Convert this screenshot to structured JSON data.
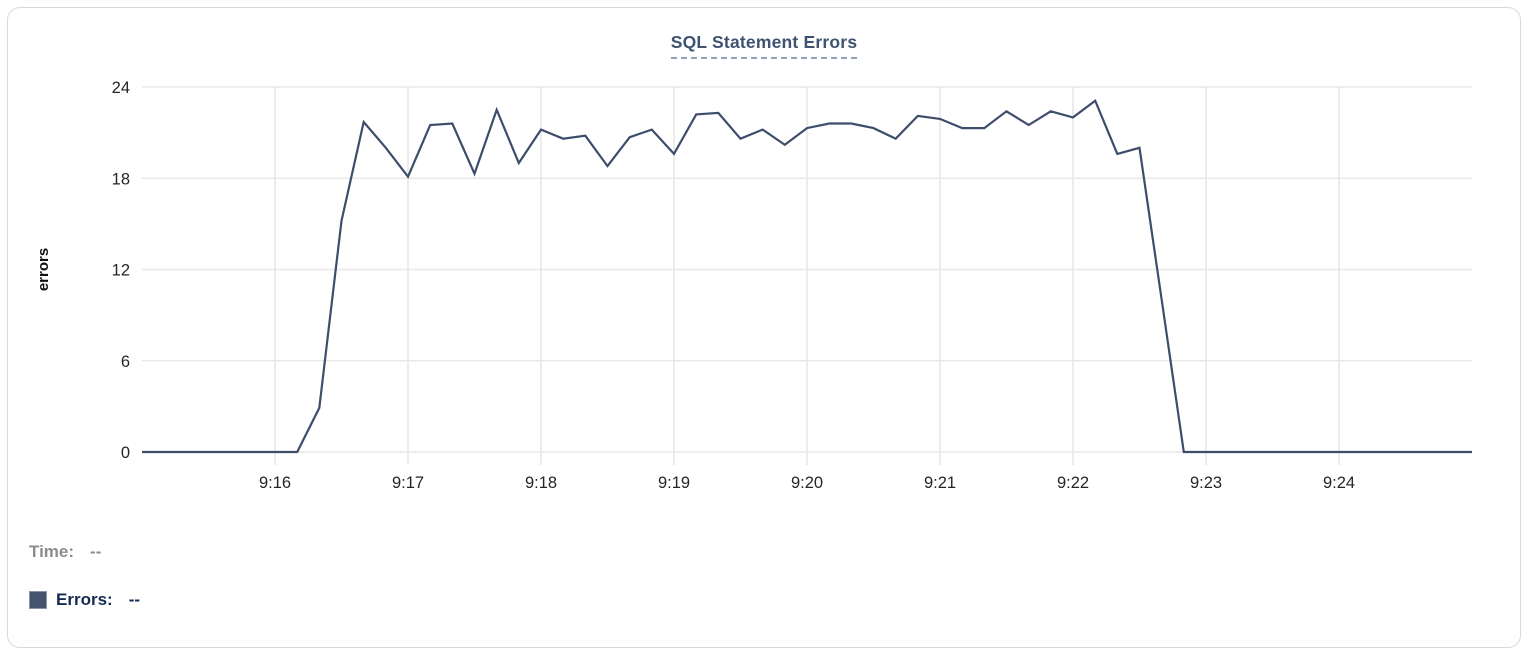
{
  "header": {
    "title": "SQL Statement Errors"
  },
  "tooltip": {
    "time_label": "Time:",
    "time_value": "--",
    "errors_label": "Errors:",
    "errors_value": "--"
  },
  "colors": {
    "line": "#3d4d6b",
    "title": "#3e5372",
    "title_underline": "#93a2bd",
    "swatch": "#44546e",
    "time_text": "#8c8c8c",
    "errors_text": "#152a52",
    "grid": "#e8e8e8",
    "tick_text": "#262626",
    "axis_label_text": "#111111",
    "card_border": "#d9d9d9"
  },
  "chart_data": {
    "type": "line",
    "title": "SQL Statement Errors",
    "xlabel": "",
    "ylabel": "errors",
    "xlim": [
      "9:15:00",
      "9:25:00"
    ],
    "ylim": [
      0,
      24
    ],
    "y_ticks": [
      0,
      6,
      12,
      18,
      24
    ],
    "x_ticks": [
      "9:16",
      "9:17",
      "9:18",
      "9:19",
      "9:20",
      "9:21",
      "9:22",
      "9:23",
      "9:24"
    ],
    "grid": true,
    "legend_position": "none",
    "series": [
      {
        "name": "Errors",
        "color": "#3d4d6b",
        "points": [
          [
            "9:15:00",
            0
          ],
          [
            "9:15:10",
            0
          ],
          [
            "9:15:20",
            0
          ],
          [
            "9:15:30",
            0
          ],
          [
            "9:15:40",
            0
          ],
          [
            "9:15:50",
            0
          ],
          [
            "9:16:00",
            0
          ],
          [
            "9:16:10",
            0
          ],
          [
            "9:16:20",
            2.9
          ],
          [
            "9:16:30",
            15.2
          ],
          [
            "9:16:40",
            21.7
          ],
          [
            "9:16:50",
            20
          ],
          [
            "9:17:00",
            18.1
          ],
          [
            "9:17:10",
            21.5
          ],
          [
            "9:17:20",
            21.6
          ],
          [
            "9:17:30",
            18.3
          ],
          [
            "9:17:40",
            22.5
          ],
          [
            "9:17:50",
            19
          ],
          [
            "9:18:00",
            21.2
          ],
          [
            "9:18:10",
            20.6
          ],
          [
            "9:18:20",
            20.8
          ],
          [
            "9:18:30",
            18.8
          ],
          [
            "9:18:40",
            20.7
          ],
          [
            "9:18:50",
            21.2
          ],
          [
            "9:19:00",
            19.6
          ],
          [
            "9:19:10",
            22.2
          ],
          [
            "9:19:20",
            22.3
          ],
          [
            "9:19:30",
            20.6
          ],
          [
            "9:19:40",
            21.2
          ],
          [
            "9:19:50",
            20.2
          ],
          [
            "9:20:00",
            21.3
          ],
          [
            "9:20:10",
            21.6
          ],
          [
            "9:20:20",
            21.6
          ],
          [
            "9:20:30",
            21.3
          ],
          [
            "9:20:40",
            20.6
          ],
          [
            "9:20:50",
            22.1
          ],
          [
            "9:21:00",
            21.9
          ],
          [
            "9:21:10",
            21.3
          ],
          [
            "9:21:20",
            21.3
          ],
          [
            "9:21:30",
            22.4
          ],
          [
            "9:21:40",
            21.5
          ],
          [
            "9:21:50",
            22.4
          ],
          [
            "9:22:00",
            22.0
          ],
          [
            "9:22:10",
            23.1
          ],
          [
            "9:22:20",
            19.6
          ],
          [
            "9:22:30",
            20.0
          ],
          [
            "9:22:40",
            10
          ],
          [
            "9:22:50",
            0
          ],
          [
            "9:23:00",
            0
          ],
          [
            "9:23:10",
            0
          ],
          [
            "9:23:20",
            0
          ],
          [
            "9:23:30",
            0
          ],
          [
            "9:23:40",
            0
          ],
          [
            "9:23:50",
            0
          ],
          [
            "9:24:00",
            0
          ],
          [
            "9:24:10",
            0
          ],
          [
            "9:24:20",
            0
          ],
          [
            "9:24:30",
            0
          ],
          [
            "9:24:40",
            0
          ],
          [
            "9:24:50",
            0
          ],
          [
            "9:25:00",
            0
          ]
        ]
      }
    ]
  }
}
